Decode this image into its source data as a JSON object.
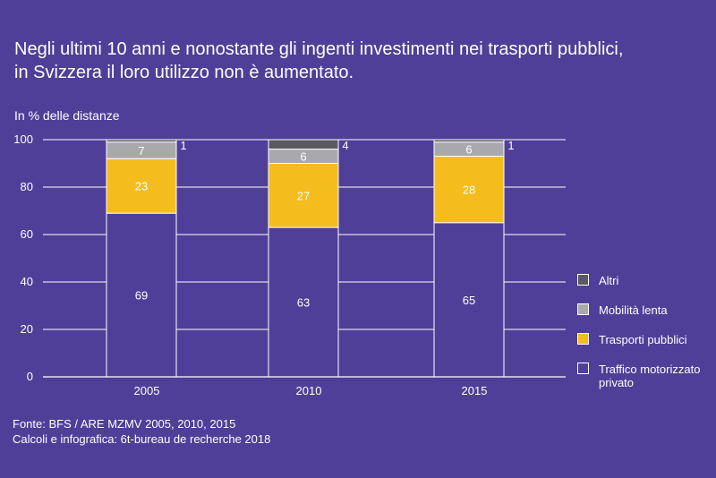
{
  "title": {
    "line1": "Negli ultimi 10 anni e nonostante gli ingenti investimenti nei trasporti pubblici,",
    "line2": "in Svizzera il loro utilizzo non è aumentato."
  },
  "source": {
    "line1": "Fonte: BFS / ARE MZMV 2005, 2010, 2015",
    "line2": "Calcoli e infografica: 6t-bureau de recherche 2018"
  },
  "colors": {
    "background": "#4f3f98",
    "traffico": "#4f3f98",
    "trasporti": "#f4bc1c",
    "mobilita": "#a9a9ad",
    "altri": "#5a5a5f"
  },
  "chart_data": {
    "type": "bar",
    "stacked": true,
    "ylabel": "In % delle distanze",
    "ylim": [
      0,
      100
    ],
    "yticks": [
      0,
      20,
      40,
      60,
      80,
      100
    ],
    "grid": true,
    "legend_position": "right",
    "categories": [
      "2005",
      "2010",
      "2015"
    ],
    "series": [
      {
        "name": "Traffico motorizzato privato",
        "color": "#4f3f98",
        "values": [
          69,
          63,
          65
        ],
        "labels": [
          "69",
          "63",
          "65"
        ]
      },
      {
        "name": "Trasporti pubblici",
        "color": "#f4bc1c",
        "values": [
          23,
          27,
          28
        ],
        "labels": [
          "23",
          "27",
          "28"
        ]
      },
      {
        "name": "Mobilità lenta",
        "color": "#a9a9ad",
        "values": [
          7,
          6,
          6
        ],
        "labels": [
          "7",
          "6",
          "6"
        ]
      },
      {
        "name": "Altri",
        "color": "#5a5a5f",
        "values": [
          1,
          4,
          1
        ],
        "labels": [
          "1",
          "4",
          "1"
        ]
      }
    ],
    "legend": [
      "Altri",
      "Mobilità lenta",
      "Trasporti pubblici",
      "Traffico motorizzato privato"
    ]
  }
}
